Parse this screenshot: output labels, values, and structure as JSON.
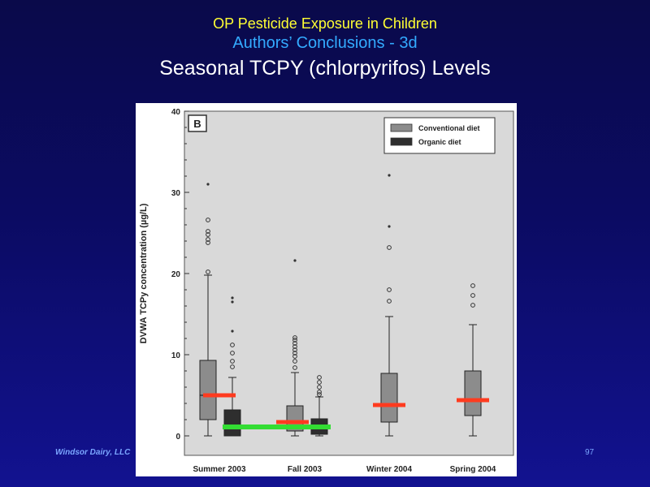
{
  "slide": {
    "title_line1": "OP Pesticide Exposure in Children",
    "title_line2": "Authors’ Conclusions - 3d",
    "title_line3": "Seasonal TCPY (chlorpyrifos) Levels",
    "footer_left": "Windsor Dairy, LLC",
    "page_number": "97"
  },
  "colors": {
    "conventional": "#8c8c8c",
    "organic": "#2e2e2e",
    "median_marker": "#ff3b1f",
    "green_marker": "#33dd33",
    "plot_bg": "#d9d9d9"
  },
  "chart_data": {
    "type": "box",
    "panel_label": "B",
    "ylabel": "DVWA TCPy concentration (µg/L)",
    "xlabel": "",
    "ylim": [
      0,
      40
    ],
    "yticks": [
      0,
      10,
      20,
      30,
      40
    ],
    "categories": [
      "Summer 2003",
      "Fall 2003",
      "Winter 2004",
      "Spring 2004"
    ],
    "legend": {
      "placement": "top-right",
      "entries": [
        "Conventional diet",
        "Organic diet"
      ]
    },
    "boxes": [
      {
        "category": "Summer 2003",
        "series": "Conventional diet",
        "min": 0,
        "q1": 2,
        "median": 5,
        "q3": 9.3,
        "max": 19.8,
        "outliers": [
          20.2,
          23.8,
          24.2,
          24.8,
          25.2,
          26.6
        ],
        "extremes": [
          31
        ]
      },
      {
        "category": "Summer 2003",
        "series": "Organic diet",
        "min": 0,
        "q1": 0,
        "median": 1.1,
        "q3": 3.2,
        "max": 7.2,
        "outliers": [
          8.5,
          9.2,
          10.2,
          11.2
        ],
        "extremes": [
          12.9,
          16.5,
          17
        ]
      },
      {
        "category": "Fall 2003",
        "series": "Conventional diet",
        "min": 0,
        "q1": 0.6,
        "median": 1.7,
        "q3": 3.7,
        "max": 7.8,
        "outliers": [
          8.4,
          9.2,
          9.8,
          10.2,
          10.6,
          11,
          11.4,
          11.8,
          12.1
        ],
        "extremes": [
          21.6
        ]
      },
      {
        "category": "Fall 2003",
        "series": "Organic diet",
        "min": 0,
        "q1": 0.2,
        "median": 1.1,
        "q3": 2.1,
        "max": 4.8,
        "outliers": [
          5.1,
          5.4,
          6,
          6.6,
          7.2
        ],
        "extremes": []
      },
      {
        "category": "Winter 2004",
        "series": "Conventional diet",
        "min": 0,
        "q1": 1.7,
        "median": 3.8,
        "q3": 7.7,
        "max": 14.7,
        "outliers": [
          16.6,
          18,
          23.2
        ],
        "extremes": [
          25.8,
          32.1
        ]
      },
      {
        "category": "Spring 2004",
        "series": "Conventional diet",
        "min": 0,
        "q1": 2.5,
        "median": 4.4,
        "q3": 8,
        "max": 13.7,
        "outliers": [
          16.1,
          17.3,
          18.5
        ],
        "extremes": []
      }
    ],
    "annotations": [
      {
        "type": "median-marker",
        "color": "red",
        "category": "Summer 2003",
        "value": 5
      },
      {
        "type": "median-marker",
        "color": "red",
        "category": "Fall 2003",
        "value": 1.7
      },
      {
        "type": "median-marker",
        "color": "red",
        "category": "Winter 2004",
        "value": 3.8
      },
      {
        "type": "median-marker",
        "color": "red",
        "category": "Spring 2004",
        "value": 4.4
      },
      {
        "type": "horizontal-marker",
        "color": "green",
        "from": "Summer 2003",
        "to": "Fall 2003",
        "value": 1.1
      }
    ]
  }
}
